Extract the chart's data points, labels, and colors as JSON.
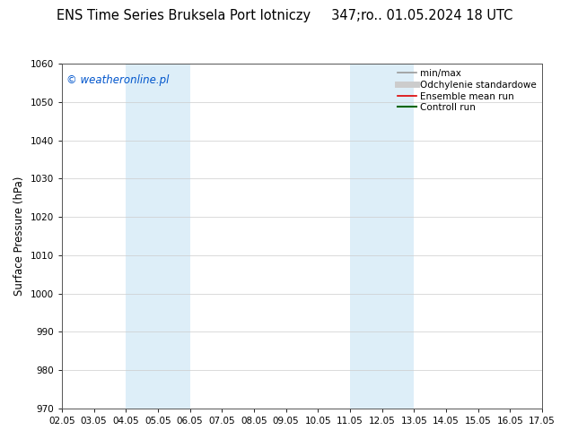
{
  "title": "ENS Time Series Bruksela Port lotniczy     347;ro.. 01.05.2024 18 UTC",
  "ylabel": "Surface Pressure (hPa)",
  "ylim": [
    970,
    1060
  ],
  "yticks": [
    970,
    980,
    990,
    1000,
    1010,
    1020,
    1030,
    1040,
    1050,
    1060
  ],
  "xtick_labels": [
    "02.05",
    "03.05",
    "04.05",
    "05.05",
    "06.05",
    "07.05",
    "08.05",
    "09.05",
    "10.05",
    "11.05",
    "12.05",
    "13.05",
    "14.05",
    "15.05",
    "16.05",
    "17.05"
  ],
  "xtick_positions": [
    0,
    1,
    2,
    3,
    4,
    5,
    6,
    7,
    8,
    9,
    10,
    11,
    12,
    13,
    14,
    15
  ],
  "shaded_regions": [
    {
      "xstart": 2,
      "xend": 4,
      "color": "#ddeef8"
    },
    {
      "xstart": 9,
      "xend": 11,
      "color": "#ddeef8"
    }
  ],
  "watermark": "© weatheronline.pl",
  "watermark_color": "#0055cc",
  "background_color": "#ffffff",
  "legend_entries": [
    {
      "label": "min/max",
      "color": "#999999",
      "lw": 1.2,
      "style": "-"
    },
    {
      "label": "Odchylenie standardowe",
      "color": "#cccccc",
      "lw": 5,
      "style": "-"
    },
    {
      "label": "Ensemble mean run",
      "color": "#dd0000",
      "lw": 1.2,
      "style": "-"
    },
    {
      "label": "Controll run",
      "color": "#006600",
      "lw": 1.5,
      "style": "-"
    }
  ],
  "title_fontsize": 10.5,
  "axis_label_fontsize": 8.5,
  "tick_fontsize": 7.5,
  "watermark_fontsize": 8.5,
  "legend_fontsize": 7.5
}
